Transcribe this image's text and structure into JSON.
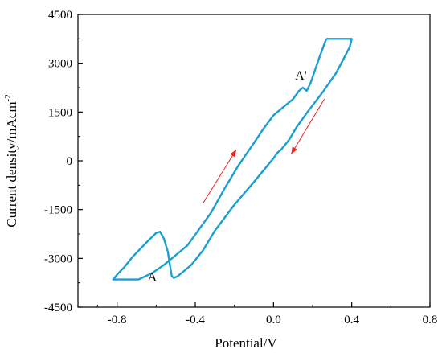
{
  "chart_data": {
    "type": "line",
    "xlabel": "Potential/V",
    "ylabel_main": "Current density/mAcm",
    "ylabel_sup": "-2",
    "xlim": [
      -1.0,
      0.8
    ],
    "ylim": [
      -4500,
      4500
    ],
    "xticks": [
      -0.8,
      -0.4,
      0.0,
      0.4,
      0.8
    ],
    "yticks": [
      -4500,
      -3000,
      -1500,
      0,
      1500,
      3000,
      4500
    ],
    "xtick_labels": [
      "-0.8",
      "-0.4",
      "0.0",
      "0.4",
      "0.8"
    ],
    "ytick_labels": [
      "-4500",
      "-3000",
      "-1500",
      "0",
      "1500",
      "3000",
      "4500"
    ],
    "grid": false,
    "colors": {
      "curve": "#1a9fd0",
      "arrow": "#e8231f",
      "axis": "#000000"
    },
    "series": [
      {
        "values": [
          [
            0.27,
            3750
          ],
          [
            0.4,
            3750
          ],
          [
            0.39,
            3500
          ],
          [
            0.36,
            3150
          ],
          [
            0.32,
            2700
          ],
          [
            0.25,
            2100
          ],
          [
            0.18,
            1550
          ],
          [
            0.12,
            1050
          ],
          [
            0.08,
            650
          ],
          [
            0.04,
            350
          ],
          [
            0.02,
            250
          ],
          [
            0.0,
            80
          ],
          [
            -0.1,
            -650
          ],
          [
            -0.2,
            -1350
          ],
          [
            -0.3,
            -2150
          ],
          [
            -0.36,
            -2750
          ],
          [
            -0.42,
            -3200
          ],
          [
            -0.46,
            -3400
          ],
          [
            -0.49,
            -3550
          ],
          [
            -0.51,
            -3600
          ],
          [
            -0.52,
            -3550
          ],
          [
            -0.53,
            -3200
          ],
          [
            -0.54,
            -2800
          ],
          [
            -0.56,
            -2400
          ],
          [
            -0.58,
            -2180
          ],
          [
            -0.6,
            -2220
          ],
          [
            -0.64,
            -2450
          ],
          [
            -0.68,
            -2700
          ],
          [
            -0.72,
            -2950
          ],
          [
            -0.76,
            -3250
          ],
          [
            -0.8,
            -3500
          ],
          [
            -0.82,
            -3650
          ],
          [
            -0.69,
            -3650
          ],
          [
            -0.62,
            -3450
          ],
          [
            -0.56,
            -3200
          ],
          [
            -0.5,
            -2900
          ],
          [
            -0.44,
            -2600
          ],
          [
            -0.38,
            -2100
          ],
          [
            -0.32,
            -1600
          ],
          [
            -0.25,
            -850
          ],
          [
            -0.18,
            -150
          ],
          [
            -0.1,
            550
          ],
          [
            -0.05,
            1000
          ],
          [
            0.0,
            1400
          ],
          [
            0.06,
            1700
          ],
          [
            0.1,
            1900
          ],
          [
            0.13,
            2150
          ],
          [
            0.15,
            2250
          ],
          [
            0.17,
            2150
          ],
          [
            0.19,
            2400
          ],
          [
            0.23,
            3100
          ],
          [
            0.27,
            3750
          ]
        ]
      }
    ],
    "annotations": [
      {
        "text": "A'",
        "x": 0.14,
        "y": 2500
      },
      {
        "text": "A",
        "x": -0.62,
        "y": -3700
      }
    ],
    "arrows": [
      {
        "from": [
          -0.36,
          -1300
        ],
        "to": [
          -0.19,
          350
        ]
      },
      {
        "from": [
          0.26,
          1900
        ],
        "to": [
          0.09,
          200
        ]
      }
    ]
  }
}
